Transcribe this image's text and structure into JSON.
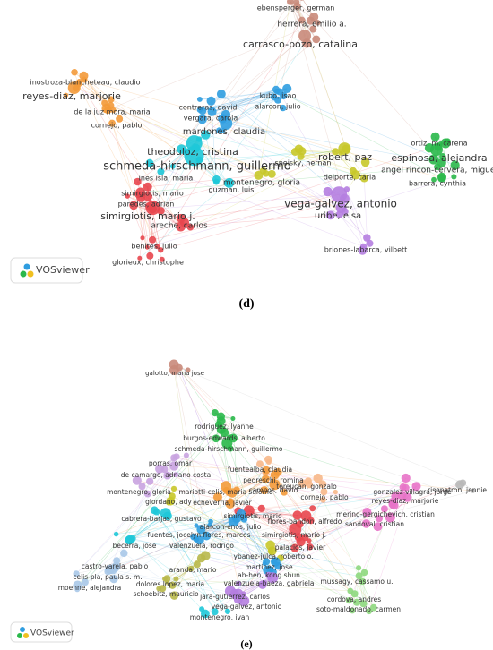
{
  "panels": [
    {
      "label": "(d)",
      "logo": "VOSviewer",
      "nodes": [
        {
          "label": "ebensperger, german"
        },
        {
          "label": "herrera, emilio a."
        },
        {
          "label": "carrasco-pozo, catalina"
        },
        {
          "label": "inostroza-blancheteau, claudio"
        },
        {
          "label": "reyes-diaz, marjorie"
        },
        {
          "label": "de la juz mora, maria"
        },
        {
          "label": "kubo, isao"
        },
        {
          "label": "alarcon, julio"
        },
        {
          "label": "contreras, david"
        },
        {
          "label": "vergara, carola"
        },
        {
          "label": "cornejo, pablo"
        },
        {
          "label": "mardones, claudia"
        },
        {
          "label": "theoduloz, cristina"
        },
        {
          "label": "schmeda-hirschmann, guillermo"
        },
        {
          "label": "ortiz, m. carena"
        },
        {
          "label": "espinosa, alejandra"
        },
        {
          "label": "angel rincon-cervera, miguel"
        },
        {
          "label": "barrera, cynthia"
        },
        {
          "label": "robert, paz"
        },
        {
          "label": "speisky, hernan"
        },
        {
          "label": "delporte, carla"
        },
        {
          "label": "ines isla, maria"
        },
        {
          "label": "montenegro, gloria"
        },
        {
          "label": "simirgiotis, mario"
        },
        {
          "label": "guzman, luis"
        },
        {
          "label": "paredes, adrian"
        },
        {
          "label": "simirgiotis, mario j."
        },
        {
          "label": "areche, carlos"
        },
        {
          "label": "vega-galvez, antonio"
        },
        {
          "label": "uribe, elsa"
        },
        {
          "label": "briones-labarca, vilbett"
        },
        {
          "label": "benites, julio"
        },
        {
          "label": "glorieux, christophe"
        }
      ]
    },
    {
      "label": "(e)",
      "logo": "VOSviewer",
      "nodes": [
        {
          "label": "galotto, maria jose"
        },
        {
          "label": "rodriguez, lyanne"
        },
        {
          "label": "burgos-edwards, alberto"
        },
        {
          "label": "schmeda-hirschmann, guillermo"
        },
        {
          "label": "porras, omar"
        },
        {
          "label": "fuentealba, claudia"
        },
        {
          "label": "de camargo, adriano costa"
        },
        {
          "label": "pedreschi, romina"
        },
        {
          "label": "montenegro, gloria"
        },
        {
          "label": "campos, david"
        },
        {
          "label": "giordano, ady"
        },
        {
          "label": "mariotti-celis, maria salome"
        },
        {
          "label": "echeverria, javier"
        },
        {
          "label": "tereucan, gonzalo"
        },
        {
          "label": "cornejo, pablo"
        },
        {
          "label": "gonzalez-villagra, jorge"
        },
        {
          "label": "reyes-diaz, marjorie"
        },
        {
          "label": "risopatron, jennie"
        },
        {
          "label": "merino-gergichevich, cristian"
        },
        {
          "label": "sandoval, cristian"
        },
        {
          "label": "cabrera-barjas, gustavo"
        },
        {
          "label": "simirgiotis, mario"
        },
        {
          "label": "flores-bandon, alfredo"
        },
        {
          "label": "alarcon-enos, julio"
        },
        {
          "label": "fuentes, jocelyn flores, marcos"
        },
        {
          "label": "simirgiotis, mario j."
        },
        {
          "label": "becerra, jose"
        },
        {
          "label": "valenzuela, rodrigo"
        },
        {
          "label": "palacios, javier"
        },
        {
          "label": "ybanez-julca, roberto o."
        },
        {
          "label": "martinez, jose"
        },
        {
          "label": "ah-hen, kong shun"
        },
        {
          "label": "castro-varela, pablo"
        },
        {
          "label": "celis-pla, paula s. m."
        },
        {
          "label": "moenne, alejandra"
        },
        {
          "label": "aranda, mario"
        },
        {
          "label": "dolores lopez, maria"
        },
        {
          "label": "schoebitz, mauricio"
        },
        {
          "label": "valenzuela-baeza, gabriela"
        },
        {
          "label": "mussagy, cassamo u."
        },
        {
          "label": "cordova, andres"
        },
        {
          "label": "soto-maldonado, carmen"
        },
        {
          "label": "jara-gutierrez, carlos"
        },
        {
          "label": "vega-galvez, antonio"
        },
        {
          "label": "montenegro, ivan"
        }
      ]
    }
  ]
}
